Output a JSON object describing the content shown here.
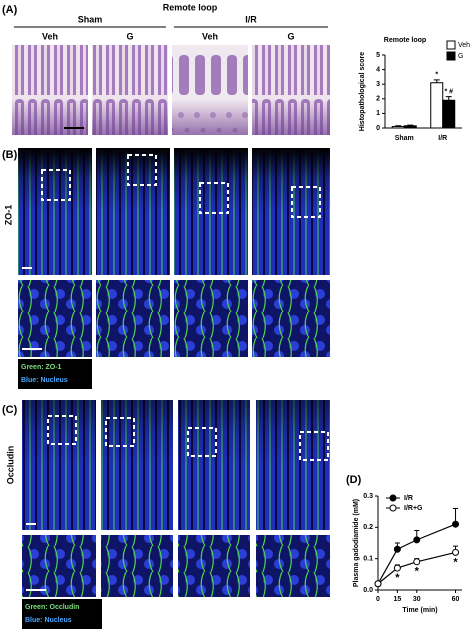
{
  "panel_a": {
    "label": "(A)",
    "title": "Remote loop",
    "groups": [
      "Sham",
      "I/R"
    ],
    "treatments": [
      "Veh",
      "G",
      "Veh",
      "G"
    ]
  },
  "panel_b": {
    "label": "(B)",
    "stain": "ZO-1",
    "legend": [
      "Green: ZO-1",
      "Blue: Nucleus"
    ]
  },
  "panel_c": {
    "label": "(C)",
    "stain": "Occludin",
    "legend": [
      "Green: Occludin",
      "Blue: Nucleus"
    ]
  },
  "panel_d": {
    "label": "(D)"
  },
  "chart_data": [
    {
      "type": "bar",
      "title": "Remote loop",
      "y_label": "Histopathological score",
      "categories": [
        "Sham",
        "I/R"
      ],
      "series": [
        {
          "name": "Veh",
          "color": "#ffffff",
          "values": [
            0.1,
            3.1
          ],
          "errors": [
            0.05,
            0.2
          ]
        },
        {
          "name": "G",
          "color": "#000000",
          "values": [
            0.15,
            1.9
          ],
          "errors": [
            0.05,
            0.25
          ]
        }
      ],
      "annotations": [
        "*",
        "* #"
      ],
      "ylim": [
        0,
        5
      ],
      "yticks": [
        0,
        1,
        2,
        3,
        4,
        5
      ],
      "legend": "upper right"
    },
    {
      "type": "line",
      "y_label": "Plasma gadodiamide (mM)",
      "x_label": "Time (min)",
      "x": [
        0,
        15,
        30,
        60
      ],
      "series": [
        {
          "name": "I/R",
          "color": "#000000",
          "marker": "filled",
          "values": [
            0.02,
            0.13,
            0.16,
            0.21
          ],
          "errors": [
            null,
            0.02,
            0.03,
            0.05
          ]
        },
        {
          "name": "I/R+G",
          "color": "#000000",
          "marker": "open",
          "values": [
            0.02,
            0.07,
            0.09,
            0.12
          ],
          "errors": [
            null,
            0.01,
            0.01,
            0.02
          ]
        }
      ],
      "significance": [
        null,
        "*",
        "*",
        "*"
      ],
      "xlim": [
        0,
        65
      ],
      "xticks": [
        0,
        15,
        30,
        60
      ],
      "ylim": [
        0,
        0.3
      ],
      "yticks": [
        {
          "value": 0,
          "label": "0.0"
        },
        {
          "value": 0.1,
          "label": "0.1"
        },
        {
          "value": 0.2,
          "label": "0.2"
        },
        {
          "value": 0.3,
          "label": "0.3"
        }
      ],
      "legend": "upper left"
    }
  ]
}
